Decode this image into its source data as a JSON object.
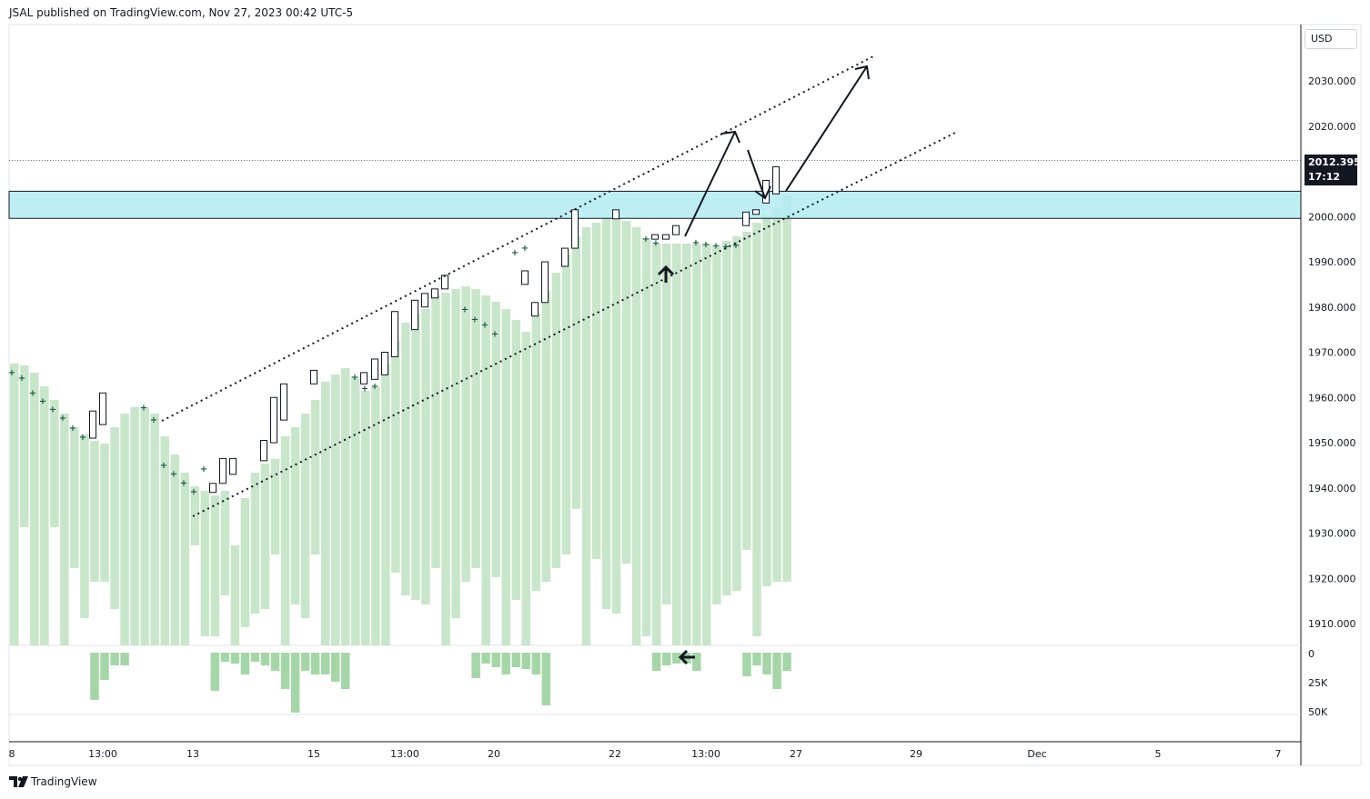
{
  "header": {
    "text": "JSAL published on TradingView.com, Nov 27, 2023 00:42 UTC-5"
  },
  "price_axis": {
    "currency": "USD",
    "current_price": "2012.395",
    "countdown": "17:12"
  },
  "footer": {
    "brand": "TradingView"
  },
  "colors": {
    "volume_bar": "#c8e6c9",
    "volume_hist": "#a5d6a7",
    "zone_fill": "#b2ebf2",
    "marker": "#1b5e4a",
    "candle_border": "#131722"
  },
  "chart_data": {
    "type": "candlestick",
    "y_ticks": [
      "2030.000",
      "2020.000",
      "2010.000",
      "2000.000",
      "1990.000",
      "1980.000",
      "1970.000",
      "1960.000",
      "1950.000",
      "1940.000",
      "1930.000",
      "1920.000",
      "1910.000"
    ],
    "x_ticks": [
      "8",
      "13:00",
      "13",
      "15",
      "13:00",
      "20",
      "22",
      "13:00",
      "27",
      "29",
      "Dec",
      "5",
      "7"
    ],
    "volume_ticks": [
      "0",
      "25K",
      "50K"
    ],
    "ylim": [
      1905,
      2040
    ],
    "resistance_zone": [
      1999.6,
      2005.6
    ],
    "candles": [
      {
        "o": 1951.0,
        "c": 1957.0,
        "h": 1957.0,
        "l": 1951.0
      },
      {
        "o": 1954.0,
        "c": 1961.0,
        "h": 1961.0,
        "l": 1954.0
      },
      {
        "o": 1939.0,
        "c": 1941.0,
        "h": 1941.0,
        "l": 1939.0
      },
      {
        "o": 1941.0,
        "c": 1946.5,
        "h": 1946.5,
        "l": 1941.0
      },
      {
        "o": 1943.0,
        "c": 1946.5,
        "h": 1946.5,
        "l": 1943.0
      },
      {
        "o": 1946.0,
        "c": 1950.5,
        "h": 1950.5,
        "l": 1946.0
      },
      {
        "o": 1950.0,
        "c": 1960.0,
        "h": 1960.0,
        "l": 1950.0
      },
      {
        "o": 1955.0,
        "c": 1963.0,
        "h": 1963.0,
        "l": 1955.0
      },
      {
        "o": 1963.0,
        "c": 1966.0,
        "h": 1966.0,
        "l": 1963.0
      },
      {
        "o": 1965.0,
        "c": 1970.0,
        "h": 1970.0,
        "l": 1965.0
      },
      {
        "o": 1963.0,
        "c": 1965.5,
        "h": 1965.5,
        "l": 1963.0
      },
      {
        "o": 1964.0,
        "c": 1968.5,
        "h": 1968.5,
        "l": 1964.0
      },
      {
        "o": 1969.0,
        "c": 1979.0,
        "h": 1979.0,
        "l": 1969.0
      },
      {
        "o": 1975.0,
        "c": 1981.5,
        "h": 1981.5,
        "l": 1975.0
      },
      {
        "o": 1980.0,
        "c": 1983.0,
        "h": 1983.0,
        "l": 1980.0
      },
      {
        "o": 1982.0,
        "c": 1984.0,
        "h": 1984.0,
        "l": 1982.0
      },
      {
        "o": 1984.0,
        "c": 1987.0,
        "h": 1987.0,
        "l": 1984.0
      },
      {
        "o": 1985.0,
        "c": 1988.0,
        "h": 1988.0,
        "l": 1985.0
      },
      {
        "o": 1978.0,
        "c": 1981.0,
        "h": 1981.0,
        "l": 1978.0
      },
      {
        "o": 1981.0,
        "c": 1990.0,
        "h": 1990.0,
        "l": 1981.0
      },
      {
        "o": 1989.0,
        "c": 1993.0,
        "h": 1993.0,
        "l": 1989.0
      },
      {
        "o": 1993.0,
        "c": 2001.5,
        "h": 2001.5,
        "l": 1993.0
      },
      {
        "o": 1999.5,
        "c": 2001.5,
        "h": 2001.5,
        "l": 1999.5
      },
      {
        "o": 1995.0,
        "c": 1996.0,
        "h": 1996.0,
        "l": 1995.0
      },
      {
        "o": 1995.0,
        "c": 1996.0,
        "h": 1996.0,
        "l": 1995.0
      },
      {
        "o": 1996.0,
        "c": 1998.0,
        "h": 1998.0,
        "l": 1996.0
      },
      {
        "o": 1998.0,
        "c": 2001.0,
        "h": 2001.0,
        "l": 1998.0
      },
      {
        "o": 2000.5,
        "c": 2001.5,
        "h": 2001.5,
        "l": 2000.5
      },
      {
        "o": 2003.0,
        "c": 2008.0,
        "h": 2008.0,
        "l": 2003.0
      },
      {
        "o": 2005.0,
        "c": 2011.0,
        "h": 2011.0,
        "l": 2005.0
      }
    ],
    "markers": [
      1965.5,
      1964.3,
      1961.0,
      1959.1,
      1957.3,
      1955.4,
      1953.2,
      1951.2,
      1945.0,
      1943.1,
      1941.1,
      1939.1,
      1964.5,
      1962.0,
      1979.4,
      1977.2,
      1976.0,
      1974.0,
      1962.5,
      1995.0,
      1992.0,
      1993.0,
      1957.7,
      1955.0,
      1944.2,
      1994.1,
      1994.2,
      1993.8,
      1993.5,
      1993.3,
      1993.6
    ]
  }
}
